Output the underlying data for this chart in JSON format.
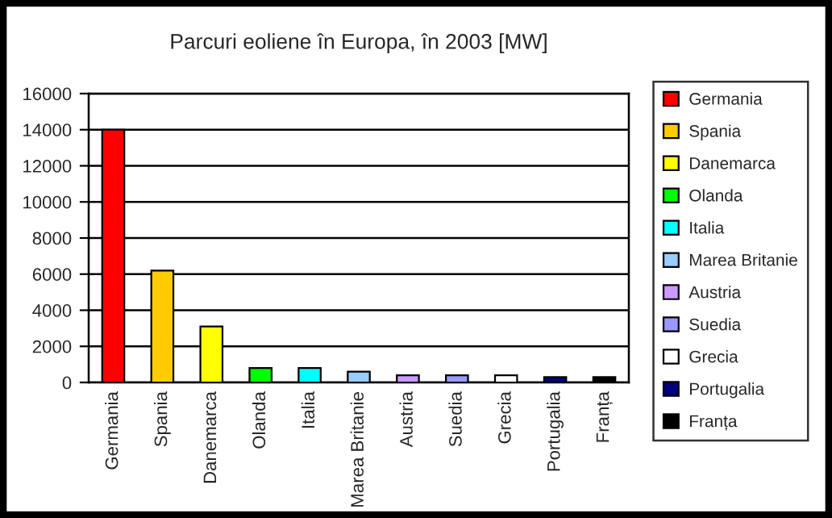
{
  "chart_data": {
    "type": "bar",
    "title": "Parcuri eoliene în Europa, în 2003 [MW]",
    "categories": [
      "Germania",
      "Spania",
      "Danemarca",
      "Olanda",
      "Italia",
      "Marea Britanie",
      "Austria",
      "Suedia",
      "Grecia",
      "Portugalia",
      "Franța"
    ],
    "series": [
      {
        "name": "Germania",
        "color": "#ff0000",
        "values": [
          14000,
          null,
          null,
          null,
          null,
          null,
          null,
          null,
          null,
          null,
          null
        ]
      },
      {
        "name": "Spania",
        "color": "#ffcc00",
        "values": [
          null,
          6200,
          null,
          null,
          null,
          null,
          null,
          null,
          null,
          null,
          null
        ]
      },
      {
        "name": "Danemarca",
        "color": "#ffff00",
        "values": [
          null,
          null,
          3100,
          null,
          null,
          null,
          null,
          null,
          null,
          null,
          null
        ]
      },
      {
        "name": "Olanda",
        "color": "#00ff00",
        "values": [
          null,
          null,
          null,
          800,
          null,
          null,
          null,
          null,
          null,
          null,
          null
        ]
      },
      {
        "name": "Italia",
        "color": "#00ffff",
        "values": [
          null,
          null,
          null,
          null,
          800,
          null,
          null,
          null,
          null,
          null,
          null
        ]
      },
      {
        "name": "Marea Britanie",
        "color": "#99ccff",
        "values": [
          null,
          null,
          null,
          null,
          null,
          600,
          null,
          null,
          null,
          null,
          null
        ]
      },
      {
        "name": "Austria",
        "color": "#cc99ff",
        "values": [
          null,
          null,
          null,
          null,
          null,
          null,
          400,
          null,
          null,
          null,
          null
        ]
      },
      {
        "name": "Suedia",
        "color": "#9999ff",
        "values": [
          null,
          null,
          null,
          null,
          null,
          null,
          null,
          400,
          null,
          null,
          null
        ]
      },
      {
        "name": "Grecia",
        "color": "#ffffff",
        "values": [
          null,
          null,
          null,
          null,
          null,
          null,
          null,
          null,
          400,
          null,
          null
        ]
      },
      {
        "name": "Portugalia",
        "color": "#000080",
        "values": [
          null,
          null,
          null,
          null,
          null,
          null,
          null,
          null,
          null,
          300,
          null
        ]
      },
      {
        "name": "Franța",
        "color": "#000000",
        "values": [
          null,
          null,
          null,
          null,
          null,
          null,
          null,
          null,
          null,
          null,
          300
        ]
      }
    ],
    "ylim": [
      0,
      16000
    ],
    "yticks": [
      0,
      2000,
      4000,
      6000,
      8000,
      10000,
      12000,
      14000,
      16000
    ],
    "grid": "y",
    "legend": "right"
  }
}
